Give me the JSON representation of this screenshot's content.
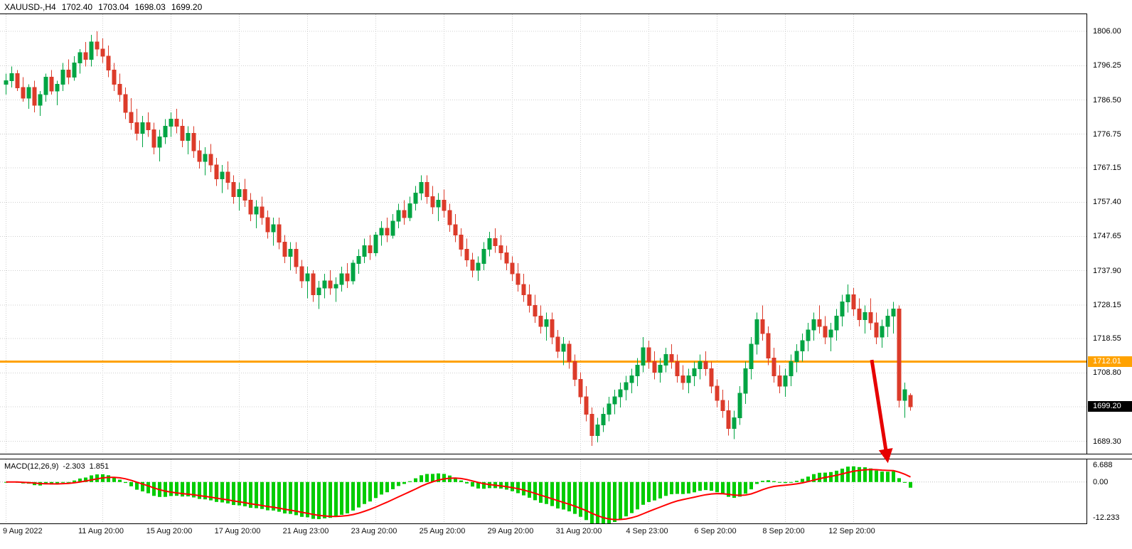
{
  "header": {
    "symbol": "XAUUSD-,H4",
    "open": "1702.40",
    "high": "1703.04",
    "low": "1698.03",
    "close": "1699.20"
  },
  "colors": {
    "background": "#ffffff",
    "bull": "#00a443",
    "bear": "#dc3b2a",
    "grid": "#cfcfcf",
    "axis_text": "#000000",
    "orange_line": "#ffa200",
    "price_badge_bg": "#000000",
    "price_badge_text": "#ffffff",
    "hline_badge_bg": "#ffa200",
    "hline_badge_text": "#ffffff",
    "macd_hist": "#00cc00",
    "macd_signal": "#ff0000",
    "arrow": "#e60000"
  },
  "chart_data": {
    "type": "candlestick",
    "title": "XAUUSD H4 candlestick chart with MACD(12,26,9), horizontal level 1712.01 and bearish arrow annotation",
    "symbol": "XAUUSD-",
    "timeframe": "H4",
    "price_range": {
      "top": 1810.9,
      "bottom": 1685.8
    },
    "price_axis_labels": [
      {
        "text": "1806.00",
        "value": 1806.0
      },
      {
        "text": "1796.25",
        "value": 1796.25
      },
      {
        "text": "1786.50",
        "value": 1786.5
      },
      {
        "text": "1776.75",
        "value": 1776.75
      },
      {
        "text": "1767.15",
        "value": 1767.15
      },
      {
        "text": "1757.40",
        "value": 1757.4
      },
      {
        "text": "1747.65",
        "value": 1747.65
      },
      {
        "text": "1737.90",
        "value": 1737.9
      },
      {
        "text": "1728.15",
        "value": 1728.15
      },
      {
        "text": "1718.55",
        "value": 1718.55
      },
      {
        "text": "1708.80",
        "value": 1708.8
      },
      {
        "text": "1689.30",
        "value": 1689.3
      }
    ],
    "current_price": {
      "text": "1699.20",
      "value": 1699.2
    },
    "horizontal_line": {
      "text": "1712.01",
      "value": 1712.01
    },
    "time_labels": [
      {
        "bar": 0,
        "text": "9 Aug 2022"
      },
      {
        "bar": 17,
        "text": "11 Aug 20:00"
      },
      {
        "bar": 29,
        "text": "15 Aug 20:00"
      },
      {
        "bar": 41,
        "text": "17 Aug 20:00"
      },
      {
        "bar": 53,
        "text": "21 Aug 23:00"
      },
      {
        "bar": 65,
        "text": "23 Aug 20:00"
      },
      {
        "bar": 77,
        "text": "25 Aug 20:00"
      },
      {
        "bar": 89,
        "text": "29 Aug 20:00"
      },
      {
        "bar": 101,
        "text": "31 Aug 20:00"
      },
      {
        "bar": 113,
        "text": "4 Sep 23:00"
      },
      {
        "bar": 125,
        "text": "6 Sep 20:00"
      },
      {
        "bar": 137,
        "text": "8 Sep 20:00"
      },
      {
        "bar": 149,
        "text": "12 Sep 20:00"
      }
    ],
    "candles": [
      [
        1791,
        1794,
        1788,
        1792
      ],
      [
        1792,
        1796,
        1790,
        1794
      ],
      [
        1794,
        1795,
        1789,
        1790
      ],
      [
        1790,
        1793,
        1786,
        1787
      ],
      [
        1787,
        1791,
        1784,
        1790
      ],
      [
        1790,
        1792,
        1783,
        1785
      ],
      [
        1785,
        1789,
        1782,
        1788
      ],
      [
        1788,
        1794,
        1786,
        1793
      ],
      [
        1793,
        1795,
        1788,
        1789
      ],
      [
        1789,
        1792,
        1785,
        1791
      ],
      [
        1791,
        1797,
        1789,
        1795
      ],
      [
        1795,
        1798,
        1791,
        1793
      ],
      [
        1793,
        1799,
        1792,
        1797
      ],
      [
        1797,
        1801,
        1794,
        1800
      ],
      [
        1800,
        1803,
        1796,
        1798
      ],
      [
        1798,
        1805,
        1796,
        1803
      ],
      [
        1803,
        1806,
        1799,
        1801
      ],
      [
        1801,
        1804,
        1797,
        1799
      ],
      [
        1799,
        1802,
        1793,
        1795
      ],
      [
        1795,
        1797,
        1789,
        1791
      ],
      [
        1791,
        1794,
        1786,
        1788
      ],
      [
        1788,
        1790,
        1781,
        1783
      ],
      [
        1783,
        1787,
        1778,
        1780
      ],
      [
        1780,
        1784,
        1775,
        1777
      ],
      [
        1777,
        1782,
        1773,
        1780
      ],
      [
        1780,
        1783,
        1776,
        1778
      ],
      [
        1778,
        1780,
        1771,
        1773
      ],
      [
        1773,
        1778,
        1769,
        1776
      ],
      [
        1776,
        1781,
        1774,
        1779
      ],
      [
        1779,
        1783,
        1776,
        1781
      ],
      [
        1781,
        1784,
        1777,
        1779
      ],
      [
        1779,
        1781,
        1773,
        1775
      ],
      [
        1775,
        1779,
        1771,
        1777
      ],
      [
        1777,
        1779,
        1770,
        1772
      ],
      [
        1772,
        1775,
        1767,
        1769
      ],
      [
        1769,
        1773,
        1765,
        1771
      ],
      [
        1771,
        1774,
        1766,
        1768
      ],
      [
        1768,
        1770,
        1762,
        1764
      ],
      [
        1764,
        1768,
        1760,
        1766
      ],
      [
        1766,
        1769,
        1761,
        1763
      ],
      [
        1763,
        1765,
        1757,
        1759
      ],
      [
        1759,
        1763,
        1755,
        1761
      ],
      [
        1761,
        1764,
        1756,
        1758
      ],
      [
        1758,
        1760,
        1752,
        1754
      ],
      [
        1754,
        1758,
        1750,
        1756
      ],
      [
        1756,
        1759,
        1751,
        1753
      ],
      [
        1753,
        1755,
        1747,
        1749
      ],
      [
        1749,
        1753,
        1745,
        1751
      ],
      [
        1751,
        1753,
        1744,
        1746
      ],
      [
        1746,
        1748,
        1740,
        1742
      ],
      [
        1742,
        1746,
        1738,
        1744
      ],
      [
        1744,
        1746,
        1737,
        1739
      ],
      [
        1739,
        1741,
        1733,
        1735
      ],
      [
        1735,
        1739,
        1730,
        1737
      ],
      [
        1737,
        1738,
        1729,
        1731
      ],
      [
        1731,
        1735,
        1727,
        1733
      ],
      [
        1733,
        1737,
        1730,
        1735
      ],
      [
        1735,
        1738,
        1731,
        1733
      ],
      [
        1733,
        1736,
        1729,
        1734
      ],
      [
        1734,
        1739,
        1732,
        1737
      ],
      [
        1737,
        1740,
        1733,
        1735
      ],
      [
        1735,
        1741,
        1734,
        1740
      ],
      [
        1740,
        1744,
        1737,
        1742
      ],
      [
        1742,
        1747,
        1740,
        1745
      ],
      [
        1745,
        1748,
        1741,
        1743
      ],
      [
        1743,
        1749,
        1742,
        1748
      ],
      [
        1748,
        1752,
        1745,
        1750
      ],
      [
        1750,
        1753,
        1746,
        1748
      ],
      [
        1748,
        1754,
        1747,
        1752
      ],
      [
        1752,
        1757,
        1750,
        1755
      ],
      [
        1755,
        1758,
        1751,
        1753
      ],
      [
        1753,
        1759,
        1752,
        1757
      ],
      [
        1757,
        1762,
        1755,
        1760
      ],
      [
        1760,
        1765,
        1758,
        1763
      ],
      [
        1763,
        1765,
        1757,
        1759
      ],
      [
        1759,
        1762,
        1754,
        1756
      ],
      [
        1756,
        1760,
        1752,
        1758
      ],
      [
        1758,
        1761,
        1753,
        1755
      ],
      [
        1755,
        1757,
        1749,
        1751
      ],
      [
        1751,
        1754,
        1746,
        1748
      ],
      [
        1748,
        1750,
        1742,
        1744
      ],
      [
        1744,
        1747,
        1739,
        1741
      ],
      [
        1741,
        1743,
        1736,
        1738
      ],
      [
        1738,
        1742,
        1735,
        1740
      ],
      [
        1740,
        1746,
        1738,
        1744
      ],
      [
        1744,
        1749,
        1742,
        1747
      ],
      [
        1747,
        1750,
        1743,
        1745
      ],
      [
        1745,
        1748,
        1741,
        1743
      ],
      [
        1743,
        1745,
        1738,
        1740
      ],
      [
        1740,
        1742,
        1735,
        1737
      ],
      [
        1737,
        1740,
        1732,
        1734
      ],
      [
        1734,
        1737,
        1729,
        1731
      ],
      [
        1731,
        1734,
        1726,
        1728
      ],
      [
        1728,
        1731,
        1723,
        1725
      ],
      [
        1725,
        1728,
        1720,
        1722
      ],
      [
        1722,
        1726,
        1718,
        1724
      ],
      [
        1724,
        1726,
        1717,
        1719
      ],
      [
        1719,
        1721,
        1713,
        1715
      ],
      [
        1715,
        1719,
        1711,
        1717
      ],
      [
        1717,
        1718,
        1710,
        1712
      ],
      [
        1712,
        1714,
        1705,
        1707
      ],
      [
        1707,
        1709,
        1700,
        1702
      ],
      [
        1702,
        1705,
        1695,
        1697
      ],
      [
        1697,
        1699,
        1688,
        1691
      ],
      [
        1691,
        1696,
        1689,
        1694
      ],
      [
        1694,
        1699,
        1692,
        1697
      ],
      [
        1697,
        1702,
        1695,
        1700
      ],
      [
        1700,
        1704,
        1697,
        1702
      ],
      [
        1702,
        1706,
        1699,
        1704
      ],
      [
        1704,
        1708,
        1701,
        1706
      ],
      [
        1706,
        1710,
        1703,
        1708
      ],
      [
        1708,
        1713,
        1705,
        1711
      ],
      [
        1711,
        1719,
        1709,
        1716
      ],
      [
        1716,
        1718,
        1710,
        1712
      ],
      [
        1712,
        1715,
        1707,
        1709
      ],
      [
        1709,
        1713,
        1706,
        1711
      ],
      [
        1711,
        1716,
        1709,
        1714
      ],
      [
        1714,
        1717,
        1710,
        1712
      ],
      [
        1712,
        1714,
        1706,
        1708
      ],
      [
        1708,
        1711,
        1704,
        1706
      ],
      [
        1706,
        1710,
        1703,
        1708
      ],
      [
        1708,
        1712,
        1705,
        1710
      ],
      [
        1710,
        1714,
        1707,
        1712
      ],
      [
        1712,
        1715,
        1708,
        1710
      ],
      [
        1710,
        1712,
        1703,
        1705
      ],
      [
        1705,
        1707,
        1699,
        1701
      ],
      [
        1701,
        1704,
        1696,
        1698
      ],
      [
        1698,
        1701,
        1691,
        1693
      ],
      [
        1693,
        1698,
        1690,
        1696
      ],
      [
        1696,
        1705,
        1694,
        1703
      ],
      [
        1703,
        1712,
        1700,
        1710
      ],
      [
        1710,
        1719,
        1707,
        1717
      ],
      [
        1717,
        1726,
        1714,
        1724
      ],
      [
        1724,
        1728,
        1718,
        1720
      ],
      [
        1720,
        1722,
        1711,
        1713
      ],
      [
        1713,
        1716,
        1706,
        1708
      ],
      [
        1708,
        1711,
        1703,
        1705
      ],
      [
        1705,
        1710,
        1702,
        1708
      ],
      [
        1708,
        1714,
        1705,
        1712
      ],
      [
        1712,
        1717,
        1709,
        1715
      ],
      [
        1715,
        1720,
        1712,
        1718
      ],
      [
        1718,
        1723,
        1715,
        1721
      ],
      [
        1721,
        1726,
        1718,
        1724
      ],
      [
        1724,
        1728,
        1720,
        1722
      ],
      [
        1722,
        1725,
        1717,
        1719
      ],
      [
        1719,
        1723,
        1715,
        1721
      ],
      [
        1721,
        1727,
        1718,
        1725
      ],
      [
        1725,
        1731,
        1722,
        1729
      ],
      [
        1729,
        1734,
        1726,
        1731
      ],
      [
        1731,
        1733,
        1725,
        1727
      ],
      [
        1727,
        1730,
        1722,
        1724
      ],
      [
        1724,
        1728,
        1720,
        1726
      ],
      [
        1726,
        1730,
        1721,
        1723
      ],
      [
        1723,
        1726,
        1717,
        1719
      ],
      [
        1719,
        1724,
        1716,
        1722
      ],
      [
        1722,
        1727,
        1719,
        1725
      ],
      [
        1725,
        1729,
        1720,
        1727
      ],
      [
        1727,
        1728,
        1699,
        1701
      ],
      [
        1701,
        1706,
        1696,
        1704
      ],
      [
        1702.4,
        1703.04,
        1698.03,
        1699.2
      ]
    ],
    "macd": {
      "name": "MACD(12,26,9)",
      "value": "-2.303",
      "signal_value": "1.851",
      "fast": 12,
      "slow": 26,
      "signal": 9,
      "axis_labels": [
        {
          "text": "6.688",
          "value": 6.688
        },
        {
          "text": "0.00",
          "value": 0
        },
        {
          "text": "-12.233",
          "value": -12.233
        }
      ],
      "range": {
        "max": 6.688,
        "min": -12.233
      }
    },
    "arrow": {
      "from": {
        "bar": 152.5,
        "price": 1712.5
      },
      "to": {
        "bar": 155.2,
        "price": 1684.6
      }
    }
  }
}
